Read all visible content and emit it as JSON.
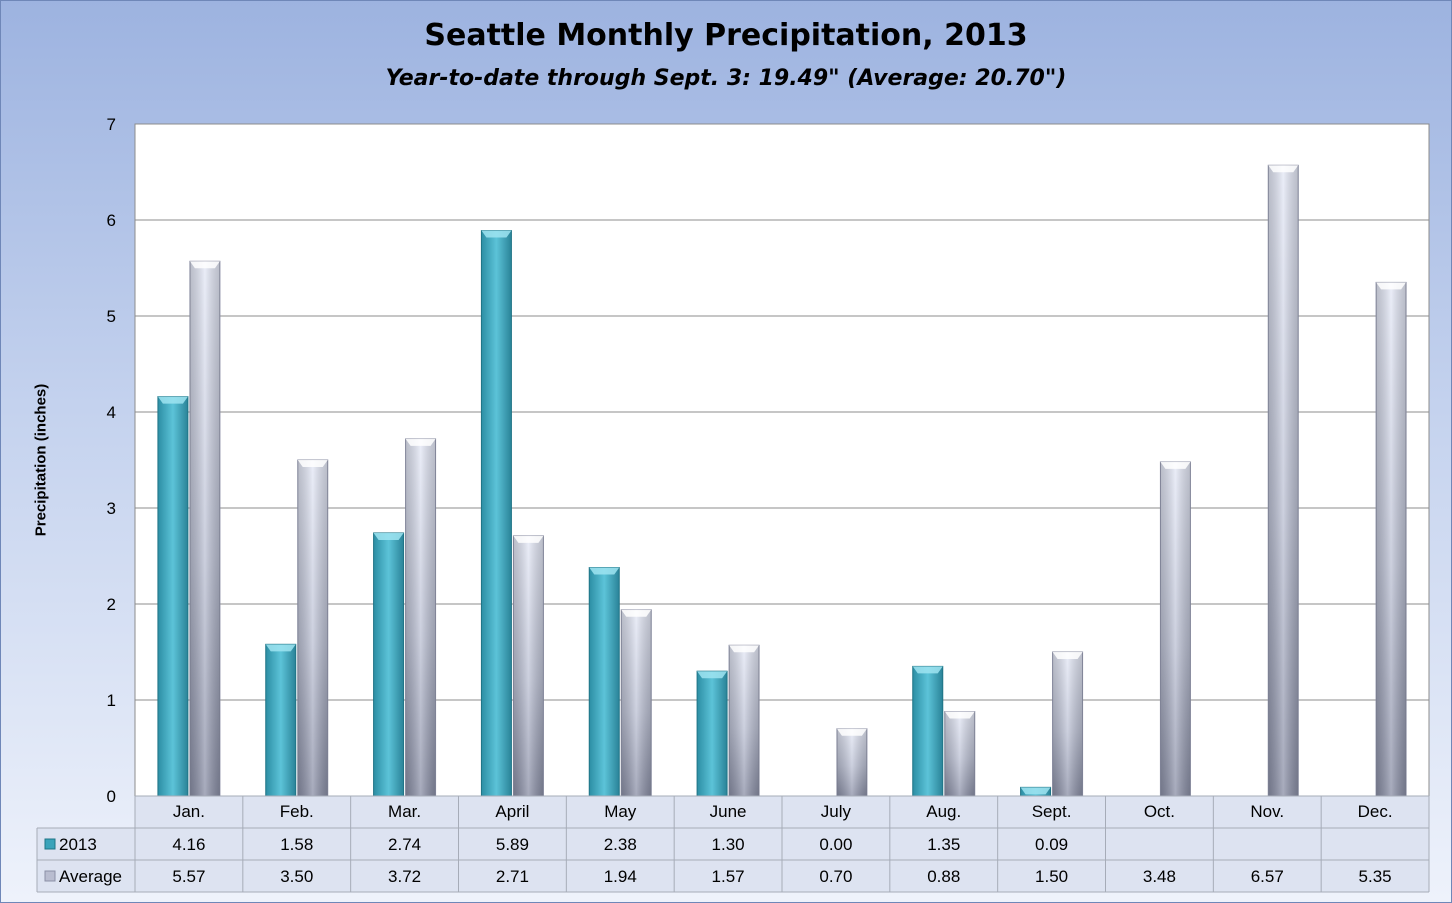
{
  "chart_data": {
    "type": "bar",
    "title": "Seattle Monthly Precipitation, 2013",
    "subtitle": "Year-to-date through Sept. 3: 19.49\" (Average: 20.70\")",
    "ylabel": "Precipitation (inches)",
    "ylim": [
      0,
      7
    ],
    "yticks": [
      "0",
      "1",
      "2",
      "3",
      "4",
      "5",
      "6",
      "7"
    ],
    "grid": true,
    "legend": "data table",
    "categories": [
      "Jan.",
      "Feb.",
      "Mar.",
      "April",
      "May",
      "June",
      "July",
      "Aug.",
      "Sept.",
      "Oct.",
      "Nov.",
      "Dec."
    ],
    "series": [
      {
        "name": "2013",
        "color": "#4bb3c9",
        "values": [
          4.16,
          1.58,
          2.74,
          5.89,
          2.38,
          1.3,
          0.0,
          1.35,
          0.09,
          null,
          null,
          null
        ],
        "labels": [
          "4.16",
          "1.58",
          "2.74",
          "5.89",
          "2.38",
          "1.30",
          "0.00",
          "1.35",
          "0.09",
          "",
          "",
          ""
        ]
      },
      {
        "name": "Average",
        "color": "#c9cde0",
        "values": [
          5.57,
          3.5,
          3.72,
          2.71,
          1.94,
          1.57,
          0.7,
          0.88,
          1.5,
          3.48,
          6.57,
          5.35
        ],
        "labels": [
          "5.57",
          "3.50",
          "3.72",
          "2.71",
          "1.94",
          "1.57",
          "0.70",
          "0.88",
          "1.50",
          "3.48",
          "6.57",
          "5.35"
        ]
      }
    ]
  }
}
